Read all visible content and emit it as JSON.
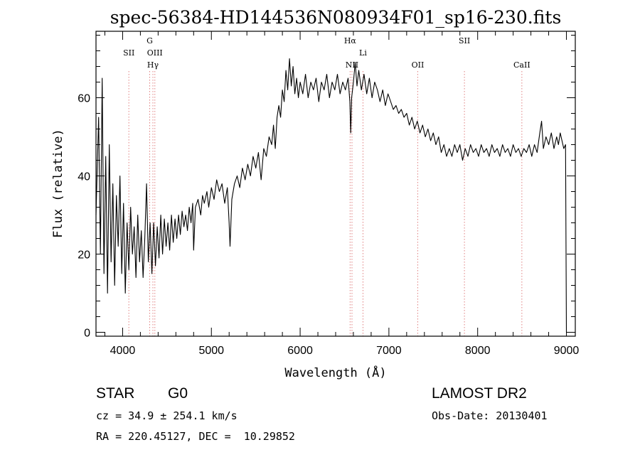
{
  "chart_data": {
    "type": "line",
    "title": "spec-56384-HD144536N080934F01_sp16-230.fits",
    "xlabel": "Wavelength (Å)",
    "ylabel": "Flux (relative)",
    "xlim": [
      3700,
      9100
    ],
    "ylim": [
      -1,
      77
    ],
    "xticks": [
      4000,
      5000,
      6000,
      7000,
      8000,
      9000
    ],
    "yticks": [
      0,
      20,
      40,
      60
    ],
    "x_minor_step": 200,
    "y_minor_step": 4,
    "grid": false,
    "series": [
      {
        "color": "#000000",
        "points": [
          [
            3700,
            30
          ],
          [
            3730,
            55
          ],
          [
            3750,
            20
          ],
          [
            3770,
            65
          ],
          [
            3790,
            15
          ],
          [
            3810,
            45
          ],
          [
            3830,
            10
          ],
          [
            3850,
            48
          ],
          [
            3870,
            18
          ],
          [
            3890,
            38
          ],
          [
            3910,
            12
          ],
          [
            3930,
            35
          ],
          [
            3950,
            22
          ],
          [
            3970,
            40
          ],
          [
            3990,
            15
          ],
          [
            4010,
            33
          ],
          [
            4030,
            10
          ],
          [
            4050,
            28
          ],
          [
            4070,
            16
          ],
          [
            4090,
            32
          ],
          [
            4110,
            20
          ],
          [
            4130,
            27
          ],
          [
            4150,
            14
          ],
          [
            4170,
            30
          ],
          [
            4190,
            18
          ],
          [
            4210,
            26
          ],
          [
            4230,
            14
          ],
          [
            4250,
            24
          ],
          [
            4270,
            38
          ],
          [
            4290,
            18
          ],
          [
            4310,
            28
          ],
          [
            4330,
            15
          ],
          [
            4350,
            28
          ],
          [
            4370,
            17
          ],
          [
            4390,
            27
          ],
          [
            4410,
            19
          ],
          [
            4430,
            30
          ],
          [
            4450,
            20
          ],
          [
            4470,
            29
          ],
          [
            4490,
            22
          ],
          [
            4510,
            28
          ],
          [
            4530,
            21
          ],
          [
            4550,
            30
          ],
          [
            4570,
            23
          ],
          [
            4590,
            29
          ],
          [
            4610,
            24
          ],
          [
            4630,
            30
          ],
          [
            4650,
            25
          ],
          [
            4670,
            31
          ],
          [
            4690,
            27
          ],
          [
            4710,
            30
          ],
          [
            4730,
            26
          ],
          [
            4750,
            32
          ],
          [
            4770,
            28
          ],
          [
            4790,
            33
          ],
          [
            4800,
            21
          ],
          [
            4820,
            32
          ],
          [
            4850,
            34
          ],
          [
            4880,
            30
          ],
          [
            4900,
            35
          ],
          [
            4920,
            33
          ],
          [
            4950,
            36
          ],
          [
            4970,
            32
          ],
          [
            5000,
            37
          ],
          [
            5030,
            34
          ],
          [
            5060,
            39
          ],
          [
            5090,
            36
          ],
          [
            5120,
            38
          ],
          [
            5150,
            33
          ],
          [
            5180,
            37
          ],
          [
            5200,
            28
          ],
          [
            5210,
            22
          ],
          [
            5230,
            34
          ],
          [
            5260,
            38
          ],
          [
            5290,
            40
          ],
          [
            5320,
            37
          ],
          [
            5350,
            42
          ],
          [
            5380,
            39
          ],
          [
            5410,
            43
          ],
          [
            5440,
            40
          ],
          [
            5470,
            45
          ],
          [
            5500,
            42
          ],
          [
            5530,
            46
          ],
          [
            5560,
            39
          ],
          [
            5590,
            47
          ],
          [
            5620,
            45
          ],
          [
            5650,
            50
          ],
          [
            5680,
            48
          ],
          [
            5700,
            53
          ],
          [
            5720,
            47
          ],
          [
            5740,
            55
          ],
          [
            5760,
            58
          ],
          [
            5780,
            55
          ],
          [
            5800,
            62
          ],
          [
            5820,
            59
          ],
          [
            5840,
            67
          ],
          [
            5860,
            62
          ],
          [
            5880,
            70
          ],
          [
            5900,
            63
          ],
          [
            5920,
            68
          ],
          [
            5940,
            61
          ],
          [
            5960,
            65
          ],
          [
            5980,
            60
          ],
          [
            6000,
            64
          ],
          [
            6030,
            61
          ],
          [
            6060,
            66
          ],
          [
            6090,
            60
          ],
          [
            6120,
            64
          ],
          [
            6150,
            62
          ],
          [
            6180,
            65
          ],
          [
            6210,
            59
          ],
          [
            6240,
            64
          ],
          [
            6270,
            62
          ],
          [
            6300,
            66
          ],
          [
            6330,
            60
          ],
          [
            6360,
            64
          ],
          [
            6390,
            62
          ],
          [
            6420,
            66
          ],
          [
            6450,
            61
          ],
          [
            6480,
            64
          ],
          [
            6510,
            62
          ],
          [
            6540,
            65
          ],
          [
            6560,
            59
          ],
          [
            6570,
            51
          ],
          [
            6580,
            60
          ],
          [
            6600,
            64
          ],
          [
            6620,
            69
          ],
          [
            6640,
            63
          ],
          [
            6660,
            67
          ],
          [
            6690,
            62
          ],
          [
            6720,
            66
          ],
          [
            6750,
            61
          ],
          [
            6780,
            65
          ],
          [
            6810,
            60
          ],
          [
            6840,
            64
          ],
          [
            6870,
            62
          ],
          [
            6900,
            59
          ],
          [
            6930,
            62
          ],
          [
            6960,
            58
          ],
          [
            6990,
            61
          ],
          [
            7020,
            59
          ],
          [
            7050,
            57
          ],
          [
            7080,
            58
          ],
          [
            7110,
            56
          ],
          [
            7140,
            57
          ],
          [
            7170,
            55
          ],
          [
            7200,
            56
          ],
          [
            7230,
            53
          ],
          [
            7260,
            55
          ],
          [
            7290,
            52
          ],
          [
            7320,
            54
          ],
          [
            7350,
            51
          ],
          [
            7380,
            53
          ],
          [
            7410,
            50
          ],
          [
            7440,
            52
          ],
          [
            7470,
            49
          ],
          [
            7500,
            51
          ],
          [
            7530,
            48
          ],
          [
            7560,
            50
          ],
          [
            7590,
            46
          ],
          [
            7620,
            48
          ],
          [
            7650,
            45
          ],
          [
            7680,
            47
          ],
          [
            7710,
            45
          ],
          [
            7740,
            48
          ],
          [
            7770,
            46
          ],
          [
            7800,
            48
          ],
          [
            7830,
            44
          ],
          [
            7860,
            47
          ],
          [
            7890,
            45
          ],
          [
            7920,
            48
          ],
          [
            7950,
            46
          ],
          [
            7980,
            47
          ],
          [
            8010,
            45
          ],
          [
            8040,
            48
          ],
          [
            8070,
            46
          ],
          [
            8100,
            47
          ],
          [
            8130,
            45
          ],
          [
            8160,
            48
          ],
          [
            8190,
            46
          ],
          [
            8220,
            47
          ],
          [
            8250,
            45
          ],
          [
            8280,
            48
          ],
          [
            8310,
            46
          ],
          [
            8340,
            47
          ],
          [
            8370,
            45
          ],
          [
            8400,
            48
          ],
          [
            8430,
            46
          ],
          [
            8460,
            47
          ],
          [
            8490,
            45
          ],
          [
            8520,
            47
          ],
          [
            8550,
            46
          ],
          [
            8580,
            48
          ],
          [
            8610,
            45
          ],
          [
            8640,
            48
          ],
          [
            8670,
            46
          ],
          [
            8700,
            51
          ],
          [
            8720,
            54
          ],
          [
            8740,
            47
          ],
          [
            8770,
            50
          ],
          [
            8800,
            48
          ],
          [
            8830,
            51
          ],
          [
            8860,
            47
          ],
          [
            8890,
            50
          ],
          [
            8910,
            48
          ],
          [
            8930,
            51
          ],
          [
            8950,
            49
          ],
          [
            8970,
            47
          ],
          [
            8990,
            48
          ],
          [
            9000,
            0
          ]
        ]
      }
    ],
    "lines": [
      {
        "label": "SII",
        "x": 4070,
        "tier": 1
      },
      {
        "label": "G",
        "x": 4305,
        "tier": 0
      },
      {
        "label": "OIII",
        "x": 4363,
        "tier": 1
      },
      {
        "label": "Hγ",
        "x": 4341,
        "tier": 2
      },
      {
        "label": "Hα",
        "x": 6563,
        "tier": 0
      },
      {
        "label": "NII",
        "x": 6584,
        "tier": 2
      },
      {
        "label": "Li",
        "x": 6708,
        "tier": 1
      },
      {
        "label": "OII",
        "x": 7325,
        "tier": 2
      },
      {
        "label": "SII",
        "x": 7851,
        "tier": 0
      },
      {
        "label": "CaII",
        "x": 8498,
        "tier": 2
      }
    ],
    "line_marker_color": "#e08080"
  },
  "info": {
    "object_class": "STAR",
    "subclass": "G0",
    "survey": "LAMOST DR2",
    "cz": "cz = 34.9 ± 254.1 km/s",
    "obs_date": "Obs-Date: 20130401",
    "coords": "RA = 220.45127, DEC =  10.29852"
  }
}
